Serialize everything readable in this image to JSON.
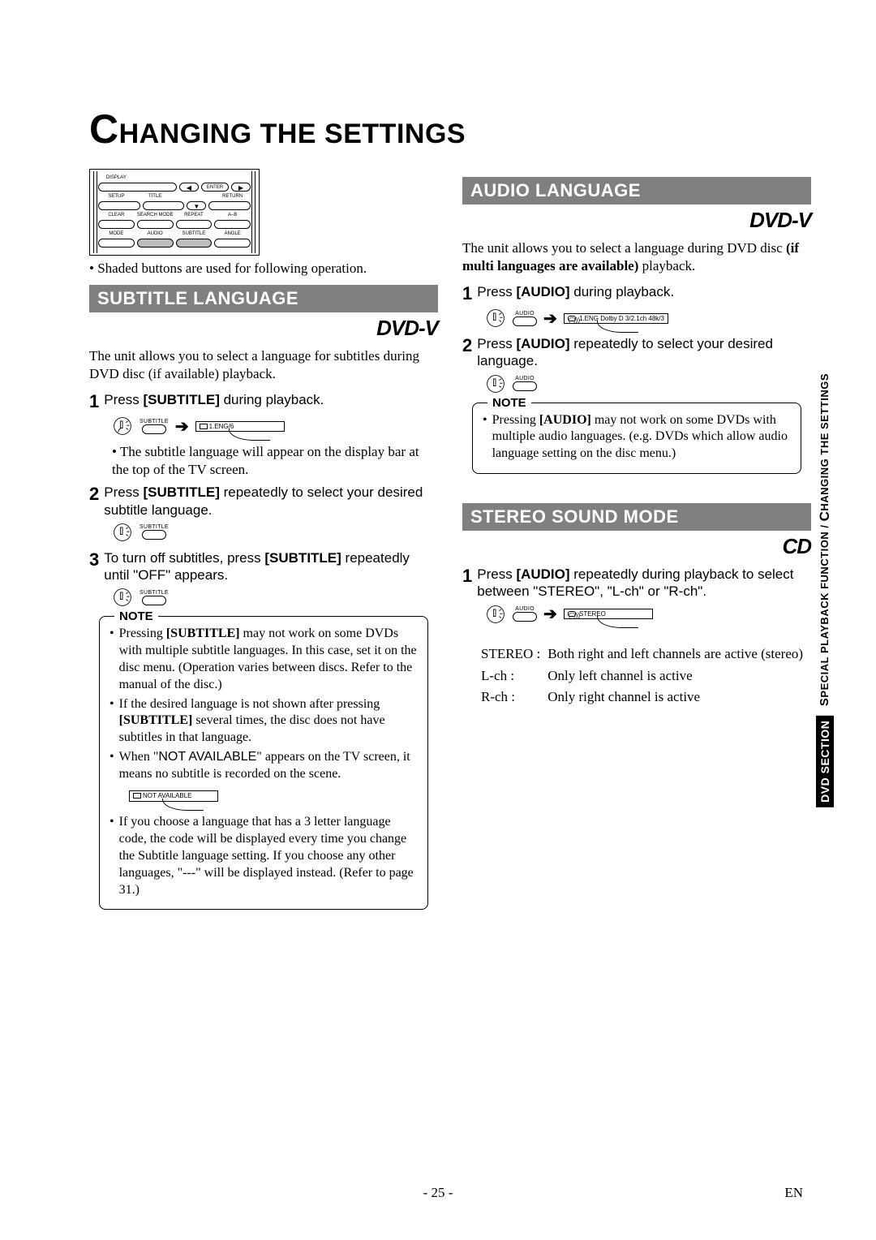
{
  "page": {
    "title_big": "C",
    "title_rest": "HANGING THE SETTINGS",
    "page_num": "- 25 -",
    "lang_code": "EN"
  },
  "side": {
    "upper_small": "S",
    "upper_rest": "PECIAL PLAYBACK FUNCTION / ",
    "upper_big": "C",
    "upper_rest2": "HANGING THE SETTINGS",
    "badge": "DVD SECTION"
  },
  "remote": {
    "row1": [
      "DISPLAY",
      "",
      "",
      "",
      ""
    ],
    "row1btn": [
      "",
      "◀",
      "ENTER",
      "▶"
    ],
    "row2": [
      "SETUP",
      "TITLE",
      "",
      "RETURN"
    ],
    "row2tri": "▼",
    "row3": [
      "CLEAR",
      "SEARCH MODE",
      "REPEAT",
      "A–B"
    ],
    "row4": [
      "MODE",
      "AUDIO",
      "SUBTITLE",
      "ANGLE"
    ],
    "caption": "• Shaded buttons are used for following operation."
  },
  "subtitle": {
    "heading": "SUBTITLE LANGUAGE",
    "logo": "DVD-V",
    "intro": "The unit allows you to select a language for subtitles during DVD disc (if available) playback.",
    "step1": "Press [SUBTITLE] during playback.",
    "step1_key": "SUBTITLE",
    "step1_display": "1.ENG/6",
    "step1_after": "• The subtitle language will appear on the display bar at the top of the TV screen.",
    "step2": "Press [SUBTITLE] repeatedly to select your desired subtitle language.",
    "step2_key": "SUBTITLE",
    "step3": "To turn off subtitles, press [SUBTITLE] repeatedly until \"OFF\" appears.",
    "step3_key": "SUBTITLE",
    "note_title": "NOTE",
    "notes": [
      "Pressing [SUBTITLE] may not work on some DVDs with multiple subtitle languages. In this case, set it on the disc menu. (Operation varies between discs. Refer to the manual of the disc.)",
      "If the desired language is not shown after pressing [SUBTITLE] several times, the disc does not have subtitles in that language.",
      "When \"NOT AVAILABLE\" appears on the TV screen, it means no subtitle is recorded on the scene."
    ],
    "not_avail_disp": "NOT AVAILABLE",
    "note_last": "If you choose a language that has a 3 letter language code, the code will be displayed every time you change the Subtitle language setting. If you choose any other languages, \"---\" will be displayed instead. (Refer to page 31.)"
  },
  "audio": {
    "heading": "AUDIO LANGUAGE",
    "logo": "DVD-V",
    "intro_a": "The unit allows you to select a language during DVD disc ",
    "intro_b": "(if multi languages are available)",
    "intro_c": " playback.",
    "step1": "Press [AUDIO] during playback.",
    "step1_key": "AUDIO",
    "step1_display": "1.ENG  Dolby D  3/2.1ch  48k/3",
    "step2": "Press [AUDIO] repeatedly to select your desired language.",
    "step2_key": "AUDIO",
    "note_title": "NOTE",
    "notes": [
      "Pressing [AUDIO] may not work on some DVDs with multiple audio languages. (e.g. DVDs which allow audio language setting on the disc menu.)"
    ]
  },
  "stereo": {
    "heading": "STEREO SOUND MODE",
    "logo": "CD",
    "step1": "Press [AUDIO] repeatedly during playback to select between \"STEREO\", \"L-ch\" or \"R-ch\".",
    "step1_key": "AUDIO",
    "step1_display": "STEREO",
    "rows": [
      [
        "STEREO :",
        "Both right and left channels are active (stereo)"
      ],
      [
        "L-ch :",
        "Only left channel is active"
      ],
      [
        "R-ch :",
        "Only right channel is active"
      ]
    ]
  }
}
